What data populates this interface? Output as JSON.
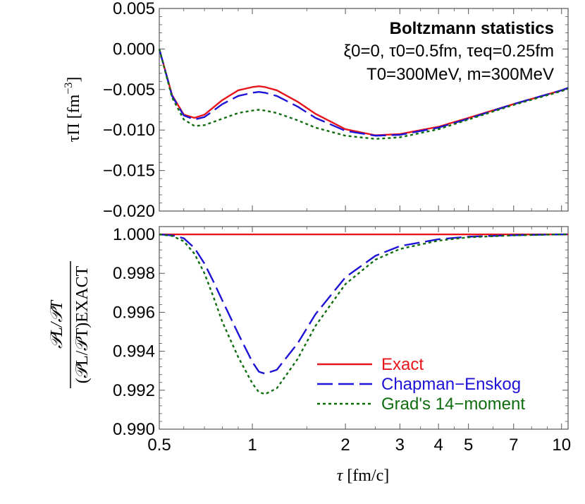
{
  "chart_data": [
    {
      "panel": "top",
      "type": "line",
      "xscale": "log",
      "xlim": [
        0.5,
        10.5
      ],
      "ylim": [
        -0.02,
        0.005
      ],
      "ylabel_prefix": "τΠ [fm",
      "ylabel_exp": "−3",
      "ylabel_suffix": "]",
      "yticks": [
        0.005,
        0.0,
        -0.005,
        -0.01,
        -0.015,
        -0.02
      ],
      "ytick_labels": [
        "0.005",
        "0.000",
        "−0.005",
        "−0.010",
        "−0.015",
        "−0.020"
      ],
      "annotation": {
        "title": "Boltzmann statistics",
        "line1": "ξ0=0, τ0=0.5fm, τeq=0.25fm",
        "line2": "T0=300MeV, m=300MeV"
      },
      "series": [
        {
          "name": "Exact",
          "color": "#e8141b",
          "x": [
            0.5,
            0.55,
            0.6,
            0.65,
            0.7,
            0.8,
            0.9,
            1.0,
            1.05,
            1.1,
            1.2,
            1.4,
            1.6,
            2.0,
            2.5,
            3.0,
            4.0,
            5.0,
            7.0,
            10.0,
            10.5
          ],
          "y": [
            0.0,
            -0.0057,
            -0.0081,
            -0.0085,
            -0.0081,
            -0.0063,
            -0.0051,
            -0.0047,
            -0.0046,
            -0.0047,
            -0.0051,
            -0.0065,
            -0.008,
            -0.0099,
            -0.01065,
            -0.0105,
            -0.0096,
            -0.0085,
            -0.0068,
            -0.0051,
            -0.0048
          ]
        },
        {
          "name": "Chapman−Enskog",
          "color": "#1d12d6",
          "x": [
            0.5,
            0.55,
            0.6,
            0.65,
            0.7,
            0.8,
            0.9,
            1.0,
            1.05,
            1.1,
            1.2,
            1.4,
            1.6,
            2.0,
            2.5,
            3.0,
            4.0,
            5.0,
            7.0,
            10.0,
            10.5
          ],
          "y": [
            0.0,
            -0.0058,
            -0.0082,
            -0.0087,
            -0.0084,
            -0.0068,
            -0.0058,
            -0.0054,
            -0.0053,
            -0.0054,
            -0.0058,
            -0.0071,
            -0.0085,
            -0.0101,
            -0.0107,
            -0.0106,
            -0.0097,
            -0.0086,
            -0.0068,
            -0.0051,
            -0.0048
          ]
        },
        {
          "name": "Grad's 14−moment",
          "color": "#0f6d0f",
          "x": [
            0.5,
            0.55,
            0.6,
            0.65,
            0.7,
            0.8,
            0.9,
            1.0,
            1.05,
            1.1,
            1.2,
            1.4,
            1.6,
            2.0,
            2.5,
            3.0,
            4.0,
            5.0,
            7.0,
            10.0,
            10.5
          ],
          "y": [
            0.0,
            -0.006,
            -0.0087,
            -0.0095,
            -0.0094,
            -0.0086,
            -0.0079,
            -0.0076,
            -0.0075,
            -0.0076,
            -0.0079,
            -0.0088,
            -0.0097,
            -0.0107,
            -0.0111,
            -0.0109,
            -0.0099,
            -0.0087,
            -0.0069,
            -0.0052,
            -0.0049
          ]
        }
      ]
    },
    {
      "panel": "bottom",
      "type": "line",
      "xscale": "log",
      "xlim": [
        0.5,
        10.5
      ],
      "ylim": [
        0.99,
        1.0004
      ],
      "xlabel_sym": "τ",
      "xlabel_unit": " [fm/c]",
      "xticks": [
        0.5,
        1,
        2,
        3,
        4,
        5,
        7,
        10
      ],
      "xtick_labels": [
        "0.5",
        "1",
        "2",
        "3",
        "4",
        "5",
        "7",
        "10"
      ],
      "yticks": [
        1.0,
        0.998,
        0.996,
        0.994,
        0.992,
        0.99
      ],
      "ytick_labels": [
        "1.000",
        "0.998",
        "0.996",
        "0.994",
        "0.992",
        "0.990"
      ],
      "ylabel_num": "𝒫L/𝒫T",
      "ylabel_den": "(𝒫L/𝒫T)EXACT",
      "series": [
        {
          "name": "Exact",
          "color": "#e8141b",
          "x": [
            0.5,
            10.5
          ],
          "y": [
            1.0,
            1.0
          ]
        },
        {
          "name": "Chapman−Enskog",
          "color": "#1d12d6",
          "x": [
            0.5,
            0.55,
            0.6,
            0.65,
            0.7,
            0.75,
            0.8,
            0.9,
            1.0,
            1.05,
            1.1,
            1.2,
            1.4,
            1.6,
            2.0,
            2.5,
            3.0,
            4.0,
            5.0,
            7.0,
            10.0,
            10.5
          ],
          "y": [
            1.0,
            0.99995,
            0.9998,
            0.9993,
            0.9985,
            0.99755,
            0.9966,
            0.9949,
            0.99345,
            0.99295,
            0.99285,
            0.99305,
            0.9944,
            0.9959,
            0.9978,
            0.9989,
            0.9994,
            0.99975,
            0.99988,
            0.99996,
            1.0,
            1.0
          ]
        },
        {
          "name": "Grad's 14−moment",
          "color": "#0f6d0f",
          "x": [
            0.5,
            0.55,
            0.6,
            0.65,
            0.7,
            0.75,
            0.8,
            0.9,
            1.0,
            1.05,
            1.1,
            1.2,
            1.4,
            1.6,
            2.0,
            2.5,
            3.0,
            4.0,
            5.0,
            7.0,
            10.0,
            10.5
          ],
          "y": [
            1.0,
            0.99992,
            0.99965,
            0.999,
            0.998,
            0.99675,
            0.9955,
            0.9937,
            0.99235,
            0.9919,
            0.9918,
            0.9921,
            0.9936,
            0.9953,
            0.99745,
            0.9987,
            0.99925,
            0.99968,
            0.99985,
            0.99995,
            1.0,
            1.0
          ]
        }
      ]
    }
  ],
  "legend": [
    {
      "label": "Exact",
      "color": "#e8141b",
      "dash": ""
    },
    {
      "label": "Chapman−Enskog",
      "color": "#1d12d6",
      "dash": "22,8"
    },
    {
      "label": "Grad's 14−moment",
      "color": "#0f6d0f",
      "dash": "4,4"
    }
  ]
}
